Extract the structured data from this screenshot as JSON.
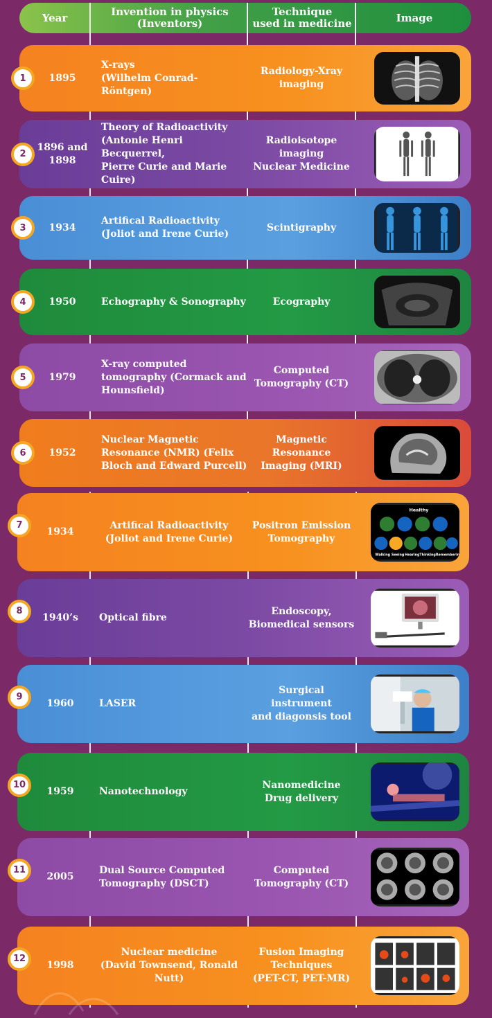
{
  "header": {
    "year": "Year",
    "invention_line1": "Invention in physics",
    "invention_line2": "(Inventors)",
    "technique_line1": "Technique",
    "technique_line2": "used in medicine",
    "image": "Image"
  },
  "rows": [
    {
      "num": "1",
      "year_line1": "1895",
      "year_line2": "",
      "inv": [
        "X-rays",
        "(Wilhelm Conrad-Röntgen)",
        ""
      ],
      "tech": [
        "Radiology-Xray",
        "imaging",
        ""
      ],
      "thumb": "chest-xray-image"
    },
    {
      "num": "2",
      "year_line1": "1896 and",
      "year_line2": "1898",
      "inv": [
        "Theory of Radioactivity",
        "(Antonie Henri Becquerrel,",
        "Pierre Curie and Marie Cuire)"
      ],
      "tech": [
        "Radioisotope",
        "imaging",
        "Nuclear Medicine"
      ],
      "thumb": "bone-scan-image"
    },
    {
      "num": "3",
      "year_line1": "1934",
      "year_line2": "",
      "inv": [
        "Artifical Radioactivity",
        "(Joliot and Irene Curie)",
        ""
      ],
      "tech": [
        "Scintigraphy",
        "",
        ""
      ],
      "thumb": "skeleton-scan-image"
    },
    {
      "num": "4",
      "year_line1": "1950",
      "year_line2": "",
      "inv": [
        "Echography  & Sonography",
        "",
        ""
      ],
      "tech": [
        "Ecography",
        "",
        ""
      ],
      "thumb": "ultrasound-image"
    },
    {
      "num": "5",
      "year_line1": "1979",
      "year_line2": "",
      "inv": [
        "X-ray computed",
        "tomography (Cormack and",
        "Hounsfield)"
      ],
      "tech": [
        "Computed",
        "Tomography (CT)",
        ""
      ],
      "thumb": "ct-lung-image"
    },
    {
      "num": "6",
      "year_line1": "1952",
      "year_line2": "",
      "inv": [
        "Nuclear Magnetic",
        "Resonance (NMR)  (Felix",
        "Bloch and Edward Purcell)"
      ],
      "tech": [
        "Magnetic Resonance",
        "Imaging (MRI)",
        ""
      ],
      "thumb": "mri-head-image"
    },
    {
      "num": "7",
      "year_line1": "1934",
      "year_line2": "",
      "inv": [
        "Artifical Radioactivity",
        "(Joliot and Irene Curie)",
        ""
      ],
      "tech": [
        "Positron Emission",
        "Tomography",
        ""
      ],
      "thumb": "pet-brain-image"
    },
    {
      "num": "8",
      "year_line1": "1940’s",
      "year_line2": "",
      "inv": [
        "Optical fibre",
        "",
        ""
      ],
      "tech": [
        "Endoscopy,",
        "Biomedical sensors",
        ""
      ],
      "thumb": "endoscope-image"
    },
    {
      "num": "9",
      "year_line1": "1960",
      "year_line2": "",
      "inv": [
        "LASER",
        "",
        ""
      ],
      "tech": [
        "Surgical instrument",
        "and diagonsis tool",
        ""
      ],
      "thumb": "surgeon-microscope-image"
    },
    {
      "num": "10",
      "year_line1": "1959",
      "year_line2": "",
      "inv": [
        "Nanotechnology",
        "",
        ""
      ],
      "tech": [
        "Nanomedicine",
        "Drug delivery",
        ""
      ],
      "thumb": "nanomedicine-image"
    },
    {
      "num": "11",
      "year_line1": "2005",
      "year_line2": "",
      "inv": [
        "Dual Source Computed",
        "Tomography (DSCT)",
        ""
      ],
      "tech": [
        "Computed",
        "Tomography (CT)",
        ""
      ],
      "thumb": "ct-brain-slices-image"
    },
    {
      "num": "12",
      "year_line1": "1998",
      "year_line2": "",
      "inv": [
        "Nuclear medicine",
        "(David Townsend, Ronald Nutt)",
        ""
      ],
      "tech": [
        "Fusion Imaging",
        "Techniques",
        "(PET-CT, PET-MR)"
      ],
      "thumb": "fusion-imaging-image"
    }
  ],
  "pet_labels": {
    "healthy": "Healthy",
    "walking": "Walking",
    "seeing": "Seeing",
    "hearing": "Hearing",
    "thinking": "Thinking",
    "remembering": "Remembering"
  }
}
